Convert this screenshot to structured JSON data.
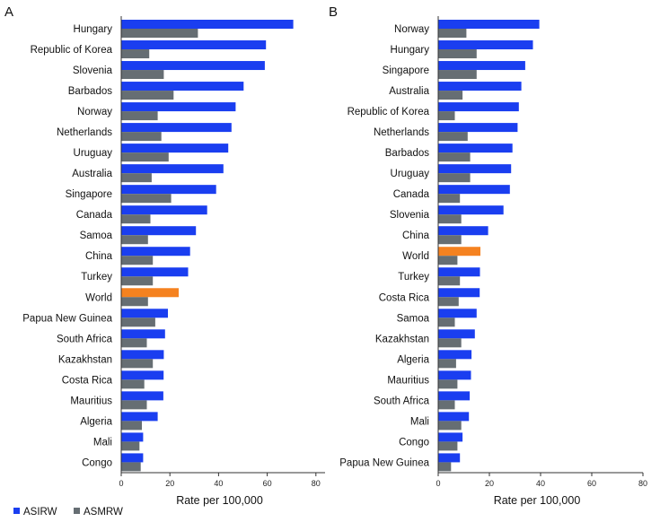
{
  "colors": {
    "asirw": "#1a3ef0",
    "asmrw": "#666e73",
    "world_highlight": "#f58220",
    "axis": "#333333"
  },
  "legend": {
    "items": [
      {
        "label": "ASIRW",
        "color": "#1a3ef0"
      },
      {
        "label": "ASMRW",
        "color": "#666e73"
      }
    ]
  },
  "chart_data": [
    {
      "panel": "A",
      "type": "bar",
      "orientation": "horizontal",
      "xlabel": "Rate per 100,000",
      "xlim": [
        0,
        85
      ],
      "xticks": [
        0,
        20,
        40,
        60,
        80
      ],
      "highlight": "World",
      "categories": [
        "Hungary",
        "Republic of Korea",
        "Slovenia",
        "Barbados",
        "Norway",
        "Netherlands",
        "Uruguay",
        "Australia",
        "Singapore",
        "Canada",
        "Samoa",
        "China",
        "Turkey",
        "World",
        "Papua New Guinea",
        "South Africa",
        "Kazakhstan",
        "Costa Rica",
        "Mauritius",
        "Algeria",
        "Mali",
        "Congo"
      ],
      "series": [
        {
          "name": "ASIRW",
          "values": [
            70.7,
            59.5,
            59.0,
            50.3,
            47.0,
            45.3,
            44.0,
            42.0,
            39.0,
            35.3,
            30.7,
            28.3,
            27.5,
            23.6,
            19.2,
            18.0,
            17.5,
            17.4,
            17.3,
            15.0,
            9.0,
            9.0
          ]
        },
        {
          "name": "ASMRW",
          "values": [
            31.5,
            11.5,
            17.5,
            21.5,
            15.0,
            16.5,
            19.5,
            12.5,
            20.5,
            12.0,
            11.0,
            13.0,
            13.0,
            11.0,
            14.0,
            10.5,
            13.0,
            9.5,
            10.5,
            8.5,
            7.5,
            8.0
          ]
        }
      ]
    },
    {
      "panel": "B",
      "type": "bar",
      "orientation": "horizontal",
      "xlabel": "Rate per 100,000",
      "xlim": [
        0,
        80
      ],
      "xticks": [
        0,
        20,
        40,
        60,
        80
      ],
      "highlight": "World",
      "categories": [
        "Norway",
        "Hungary",
        "Singapore",
        "Australia",
        "Republic of Korea",
        "Netherlands",
        "Barbados",
        "Uruguay",
        "Canada",
        "Slovenia",
        "China",
        "World",
        "Turkey",
        "Costa Rica",
        "Samoa",
        "Kazakhstan",
        "Algeria",
        "Mauritius",
        "South Africa",
        "Mali",
        "Congo",
        "Papua New Guinea"
      ],
      "series": [
        {
          "name": "ASIRW",
          "values": [
            39.5,
            37.0,
            34.0,
            32.5,
            31.5,
            31.0,
            29.0,
            28.5,
            28.0,
            25.5,
            19.5,
            16.5,
            16.3,
            16.2,
            15.0,
            14.3,
            13.0,
            12.8,
            12.3,
            12.0,
            9.5,
            8.5
          ]
        },
        {
          "name": "ASMRW",
          "values": [
            11.0,
            15.0,
            15.0,
            9.5,
            6.5,
            11.5,
            12.5,
            12.5,
            8.5,
            9.0,
            9.0,
            7.5,
            8.5,
            8.0,
            6.5,
            9.0,
            7.0,
            7.5,
            6.5,
            9.0,
            7.5,
            5.0
          ]
        }
      ]
    }
  ]
}
